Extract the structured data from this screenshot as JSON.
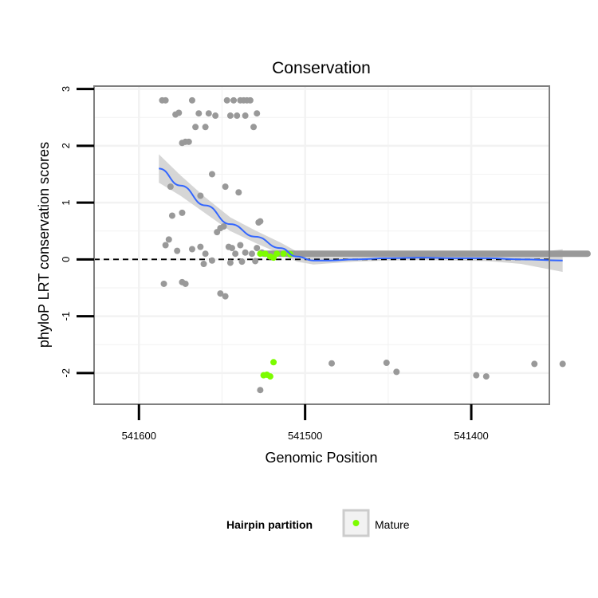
{
  "chart_data": {
    "type": "scatter",
    "title": "Conservation",
    "xlabel": "Genomic Position",
    "ylabel": "phyloP LRT conservation scores",
    "xlim": [
      541627,
      541353
    ],
    "ylim": [
      -2.55,
      3.05
    ],
    "x_reversed": true,
    "x_ticks": [
      541600,
      541500,
      541400
    ],
    "x_tick_labels": [
      "541600",
      "541500",
      "541400"
    ],
    "y_ticks": [
      3,
      2,
      1,
      0,
      -1,
      -2
    ],
    "y_tick_labels": [
      "3",
      "2",
      "1",
      "0",
      "-1",
      "-2"
    ],
    "reference_line": {
      "y": 0,
      "style": "dashed",
      "color": "#000000"
    },
    "grid": true,
    "legend": {
      "title": "Hairpin partition",
      "position": "bottom",
      "entries": [
        {
          "label": "Mature",
          "color": "#7cfc00"
        }
      ]
    },
    "colors": {
      "other": "#999999",
      "mature": "#7cfc00",
      "smooth": "#3366ff",
      "ribbon": "#cccccc",
      "panel_bg": "#ffffff",
      "grid": "#f2f2f2",
      "border": "#7f7f7f"
    },
    "series": [
      {
        "name": "Other",
        "color": "#999999",
        "points": [
          [
            541586,
            2.8
          ],
          [
            541584,
            2.8
          ],
          [
            541578,
            2.55
          ],
          [
            541576,
            2.58
          ],
          [
            541574,
            2.05
          ],
          [
            541572,
            2.07
          ],
          [
            541570,
            2.07
          ],
          [
            541568,
            2.8
          ],
          [
            541566,
            2.33
          ],
          [
            541564,
            2.57
          ],
          [
            541560,
            2.33
          ],
          [
            541558,
            2.57
          ],
          [
            541554,
            2.53
          ],
          [
            541547,
            2.8
          ],
          [
            541545,
            2.53
          ],
          [
            541543,
            2.8
          ],
          [
            541541,
            2.53
          ],
          [
            541539,
            2.8
          ],
          [
            541537,
            2.8
          ],
          [
            541536,
            2.53
          ],
          [
            541535,
            2.8
          ],
          [
            541533,
            2.8
          ],
          [
            541531,
            2.33
          ],
          [
            541529,
            2.57
          ],
          [
            541581,
            1.28
          ],
          [
            541580,
            0.77
          ],
          [
            541574,
            0.82
          ],
          [
            541563,
            1.12
          ],
          [
            541556,
            1.5
          ],
          [
            541548,
            1.28
          ],
          [
            541540,
            1.18
          ],
          [
            541527,
            0.67
          ],
          [
            541528,
            0.65
          ],
          [
            541584,
            0.25
          ],
          [
            541582,
            0.35
          ],
          [
            541577,
            0.15
          ],
          [
            541568,
            0.18
          ],
          [
            541563,
            0.22
          ],
          [
            541560,
            0.1
          ],
          [
            541553,
            0.48
          ],
          [
            541551,
            0.55
          ],
          [
            541549,
            0.58
          ],
          [
            541546,
            0.22
          ],
          [
            541544,
            0.2
          ],
          [
            541542,
            0.1
          ],
          [
            541539,
            0.25
          ],
          [
            541536,
            0.12
          ],
          [
            541532,
            0.1
          ],
          [
            541529,
            0.2
          ],
          [
            541526,
            0.12
          ],
          [
            541585,
            -0.43
          ],
          [
            541574,
            -0.4
          ],
          [
            541572,
            -0.43
          ],
          [
            541561,
            -0.08
          ],
          [
            541556,
            -0.02
          ],
          [
            541551,
            -0.6
          ],
          [
            541548,
            -0.65
          ],
          [
            541545,
            -0.06
          ],
          [
            541538,
            -0.04
          ],
          [
            541530,
            -0.03
          ],
          [
            541527,
            -2.3
          ],
          [
            541484,
            -1.83
          ],
          [
            541451,
            -1.82
          ],
          [
            541445,
            -1.98
          ],
          [
            541397,
            -2.04
          ],
          [
            541391,
            -2.06
          ],
          [
            541362,
            -1.84
          ],
          [
            541345,
            -1.84
          ]
        ]
      },
      {
        "name": "Mature",
        "color": "#7cfc00",
        "points": [
          [
            541525,
            -2.04
          ],
          [
            541523,
            -2.03
          ],
          [
            541521,
            -2.06
          ],
          [
            541519,
            -1.81
          ],
          [
            541527,
            0.1
          ],
          [
            541524,
            0.1
          ],
          [
            541521,
            0.05
          ],
          [
            541519,
            0.03
          ],
          [
            541517,
            0.1
          ],
          [
            541513,
            0.1
          ],
          [
            541509,
            0.09
          ]
        ]
      }
    ],
    "baseline_band": {
      "x_from": 541525,
      "x_to": 541330,
      "y": 0.1,
      "color": "#999999"
    },
    "smooth": {
      "x": [
        541588,
        541575,
        541560,
        541545,
        541530,
        541515,
        541505,
        541495,
        541485,
        541470,
        541450,
        541430,
        541410,
        541390,
        541370,
        541345
      ],
      "y": [
        1.6,
        1.3,
        0.95,
        0.62,
        0.4,
        0.2,
        0.05,
        -0.02,
        -0.02,
        0.0,
        0.02,
        0.03,
        0.02,
        0.02,
        0.0,
        -0.02
      ],
      "se": [
        0.25,
        0.18,
        0.14,
        0.12,
        0.11,
        0.1,
        0.09,
        0.07,
        0.05,
        0.04,
        0.04,
        0.04,
        0.04,
        0.05,
        0.08,
        0.2
      ]
    }
  }
}
